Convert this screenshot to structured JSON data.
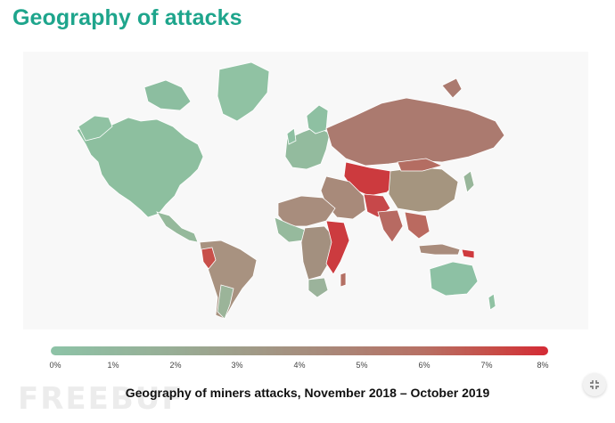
{
  "page": {
    "title": "Geography of attacks",
    "caption": "Geography of miners attacks, November 2018 – October 2019",
    "watermark": "FREEBUF"
  },
  "legend": {
    "ticks": [
      "0%",
      "1%",
      "2%",
      "3%",
      "4%",
      "5%",
      "6%",
      "7%",
      "8%"
    ],
    "colors": {
      "low": "#8dc3a7",
      "mid": "#a8897a",
      "high": "#d42a35"
    }
  },
  "controls": {
    "collapse_icon": "collapse-arrows-icon"
  }
}
